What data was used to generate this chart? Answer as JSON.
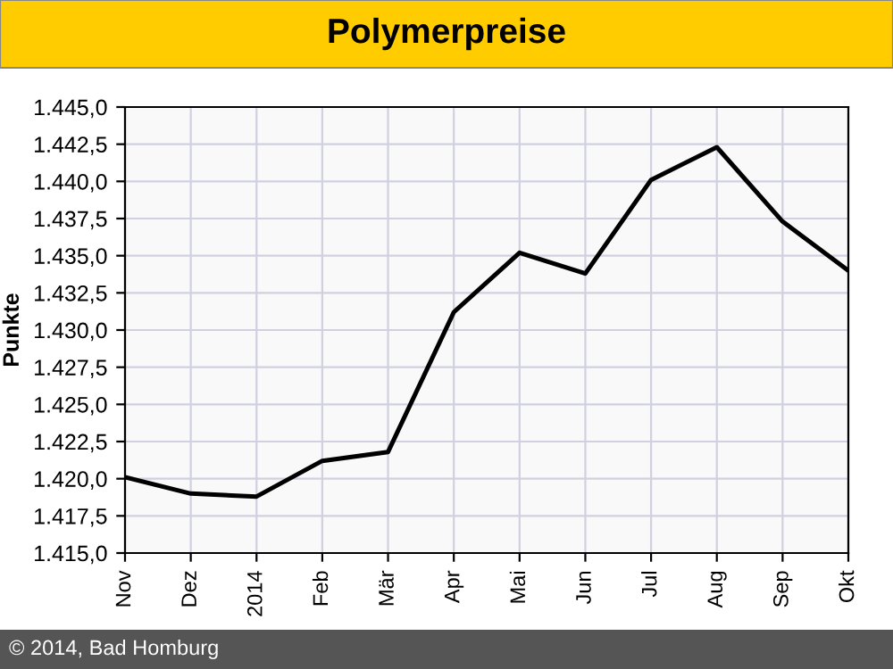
{
  "chart_data": {
    "type": "line",
    "title": "Polymerpreise",
    "ylabel": "Punkte",
    "categories": [
      "Nov",
      "Dez",
      "2014",
      "Feb",
      "Mär",
      "Apr",
      "Mai",
      "Jun",
      "Jul",
      "Aug",
      "Sep",
      "Okt"
    ],
    "series": [
      {
        "color": "#000000",
        "values": [
          1420.1,
          1419.0,
          1418.8,
          1421.2,
          1421.8,
          1431.2,
          1435.2,
          1433.8,
          1440.1,
          1442.3,
          1437.3,
          1434.0
        ]
      }
    ],
    "ylim": [
      1415,
      1445
    ],
    "yticks": [
      {
        "value": 1415,
        "label": "1.415,0"
      },
      {
        "value": 1417.5,
        "label": "1.417,5"
      },
      {
        "value": 1420,
        "label": "1.420,0"
      },
      {
        "value": 1422.5,
        "label": "1.422,5"
      },
      {
        "value": 1425,
        "label": "1.425,0"
      },
      {
        "value": 1427.5,
        "label": "1.427,5"
      },
      {
        "value": 1430,
        "label": "1.430,0"
      },
      {
        "value": 1432.5,
        "label": "1.432,5"
      },
      {
        "value": 1435,
        "label": "1.435,0"
      },
      {
        "value": 1437.5,
        "label": "1.437,5"
      },
      {
        "value": 1440,
        "label": "1.440,0"
      },
      {
        "value": 1442.5,
        "label": "1.442,5"
      },
      {
        "value": 1445,
        "label": "1.445,0"
      }
    ],
    "grid": true,
    "marker": "none",
    "line_style": "solid",
    "annotations": [
      "© 2014, Bad Homburg"
    ]
  }
}
